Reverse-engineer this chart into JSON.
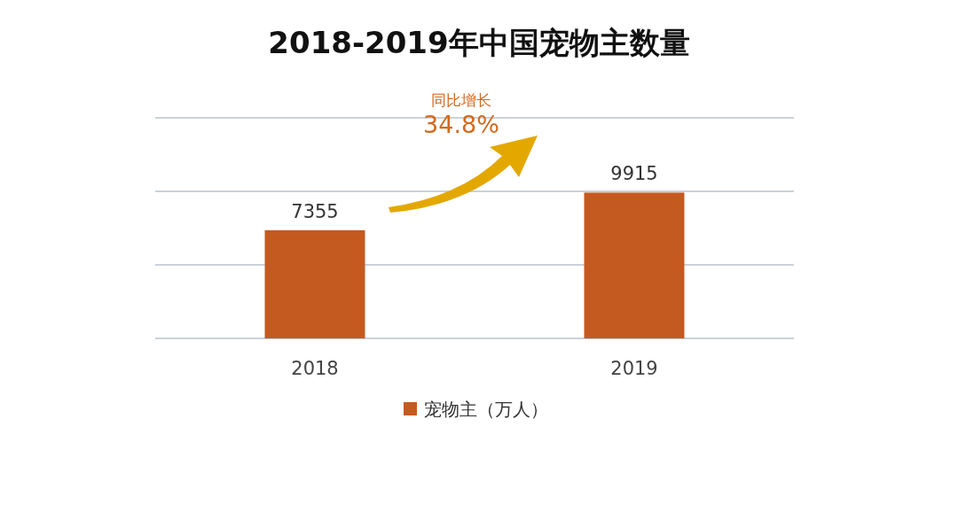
{
  "chart_data": {
    "type": "bar",
    "title": "2018-2019年中国宠物主数量",
    "categories": [
      "2018",
      "2019"
    ],
    "series": [
      {
        "name": "宠物主（万人）",
        "color": "#c55a20",
        "values": [
          7355,
          9915
        ]
      }
    ],
    "ylim": [
      0,
      15000
    ],
    "yticks": [
      {
        "value": 0,
        "label": null
      },
      {
        "value": 5000,
        "label": null
      },
      {
        "value": 10000,
        "label": null
      },
      {
        "value": 15000,
        "label": null
      }
    ],
    "tick_labels": "x",
    "grid": "y",
    "legend": "bottom",
    "data_labels": true,
    "annotations": [
      "同比增长",
      "34.8%"
    ]
  }
}
